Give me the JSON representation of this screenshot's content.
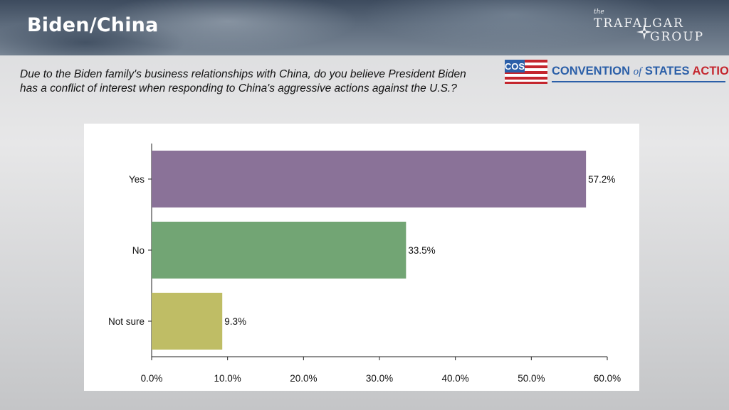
{
  "header": {
    "title": "Biden/China",
    "brand": {
      "the": "the",
      "line1": "TRAFALGAR",
      "line2": "GROUP"
    }
  },
  "question": "Due to the Biden family's business relationships with China, do you believe President Biden has a conflict of interest when responding to China's aggressive actions against the U.S.?",
  "sponsor": {
    "abbr": "COS",
    "part1": "CONVENTION",
    "of": "of",
    "part2": "STATES",
    "part3": "ACTION"
  },
  "chart_data": {
    "type": "bar",
    "orientation": "horizontal",
    "title": "",
    "xlabel": "",
    "ylabel": "",
    "categories": [
      "Yes",
      "No",
      "Not sure"
    ],
    "values": [
      57.2,
      33.5,
      9.3
    ],
    "value_labels": [
      "57.2%",
      "33.5%",
      "9.3%"
    ],
    "colors": [
      "#8a7298",
      "#72a574",
      "#bfbd65"
    ],
    "xlim": [
      0,
      60
    ],
    "xticks": [
      0,
      10,
      20,
      30,
      40,
      50,
      60
    ],
    "xtick_labels": [
      "0.0%",
      "10.0%",
      "20.0%",
      "30.0%",
      "40.0%",
      "50.0%",
      "60.0%"
    ],
    "grid": false,
    "legend": "none"
  }
}
